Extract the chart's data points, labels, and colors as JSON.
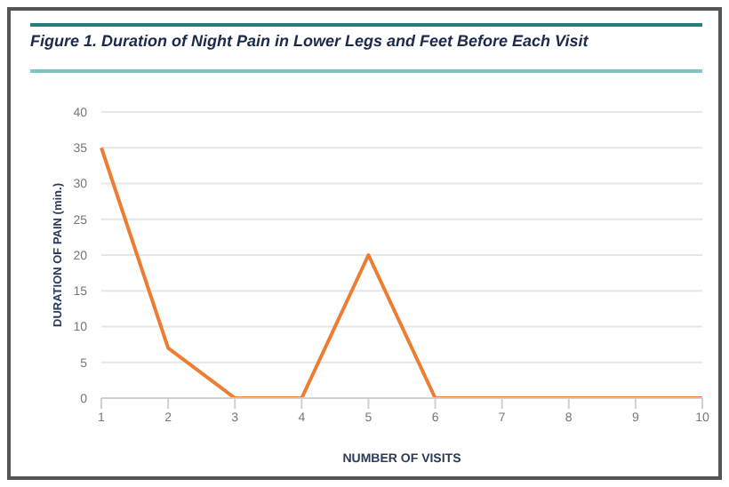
{
  "chart_data": {
    "type": "line",
    "title": "Figure 1. Duration of Night Pain in Lower Legs and Feet Before Each Visit",
    "xlabel": "NUMBER OF VISITS",
    "ylabel": "DURATION OF PAIN (min.)",
    "categories": [
      "1",
      "2",
      "3",
      "4",
      "5",
      "6",
      "7",
      "8",
      "9",
      "10"
    ],
    "series": [
      {
        "color": "#ed7d31",
        "values": [
          35,
          7,
          0,
          0,
          20,
          0,
          0,
          0,
          0,
          0
        ]
      }
    ],
    "ylim": [
      0,
      40
    ],
    "yticks": [
      0,
      5,
      10,
      15,
      20,
      25,
      30,
      35,
      40
    ],
    "grid": "y",
    "marker": "none",
    "line_style": "solid",
    "legend": false
  }
}
